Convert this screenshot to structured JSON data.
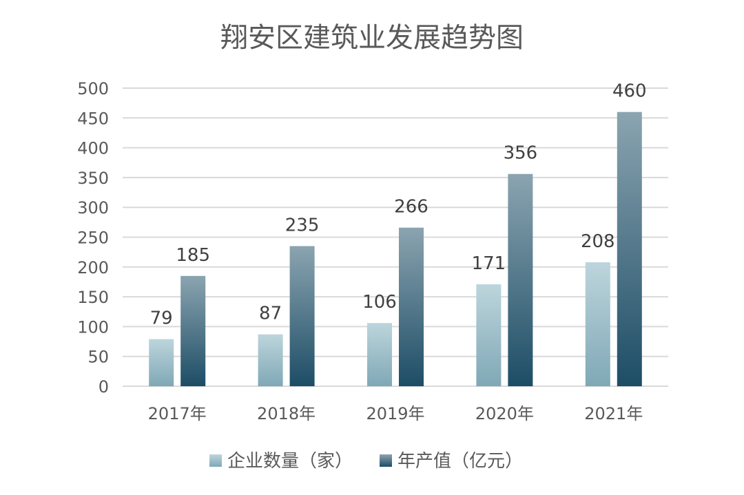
{
  "chart_data": {
    "type": "bar",
    "title": "翔安区建筑业发展趋势图",
    "xlabel": "",
    "ylabel": "",
    "categories": [
      "2017年",
      "2018年",
      "2019年",
      "2020年",
      "2021年"
    ],
    "series": [
      {
        "name": "企业数量（家）",
        "values": [
          79,
          87,
          106,
          171,
          208
        ],
        "color_top": "#bdd5dc",
        "color_bottom": "#7fa8b6"
      },
      {
        "name": "年产值（亿元）",
        "values": [
          185,
          235,
          266,
          356,
          460
        ],
        "color_top": "#8ba4b0",
        "color_bottom": "#1d4d66"
      }
    ],
    "ylim": [
      0,
      500
    ],
    "yticks": [
      0,
      50,
      100,
      150,
      200,
      250,
      300,
      350,
      400,
      450,
      500
    ],
    "ytick_labels": [
      "0",
      "50",
      "100",
      "150",
      "200",
      "250",
      "300",
      "350",
      "400",
      "450",
      "500"
    ],
    "grid": true,
    "legend_position": "bottom"
  }
}
